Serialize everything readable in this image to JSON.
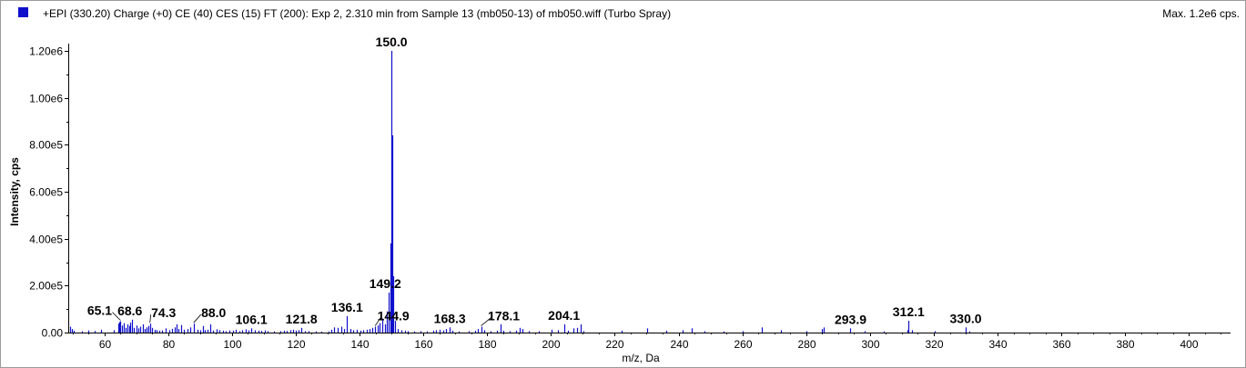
{
  "header": {
    "title": "+EPI (330.20) Charge (+0) CE (40) CES (15) FT (200): Exp 2, 2.310 min from Sample 13 (mb050-13) of mb050.wiff (Turbo Spray)",
    "max_label": "Max. 1.2e6 cps."
  },
  "colors": {
    "series": "#1010cc",
    "axis": "#000000",
    "frame": "#9a9a9a"
  },
  "chart_data": {
    "type": "bar",
    "xlabel": "m/z, Da",
    "ylabel": "Intensity, cps",
    "xlim": [
      49,
      413
    ],
    "ylim": [
      0,
      1200000
    ],
    "x_ticks": [
      60,
      80,
      100,
      120,
      140,
      160,
      180,
      200,
      220,
      240,
      260,
      280,
      300,
      320,
      340,
      360,
      380,
      400
    ],
    "y_ticks": [
      {
        "value": 0,
        "label": "0.00"
      },
      {
        "value": 200000,
        "label": "2.00e5"
      },
      {
        "value": 400000,
        "label": "4.00e5"
      },
      {
        "value": 600000,
        "label": "6.00e5"
      },
      {
        "value": 800000,
        "label": "8.00e5"
      },
      {
        "value": 1000000,
        "label": "1.00e6"
      },
      {
        "value": 1200000,
        "label": "1.20e6"
      }
    ],
    "peaks": [
      {
        "mz": 49.3,
        "y": 25000
      },
      {
        "mz": 49.8,
        "y": 15000
      },
      {
        "mz": 50.5,
        "y": 8000
      },
      {
        "mz": 53.0,
        "y": 6000
      },
      {
        "mz": 55.1,
        "y": 9000
      },
      {
        "mz": 57.0,
        "y": 7000
      },
      {
        "mz": 59.1,
        "y": 12000
      },
      {
        "mz": 63.0,
        "y": 10000
      },
      {
        "mz": 64.3,
        "y": 38000
      },
      {
        "mz": 64.7,
        "y": 45000
      },
      {
        "mz": 65.1,
        "y": 48000
      },
      {
        "mz": 65.6,
        "y": 30000
      },
      {
        "mz": 66.2,
        "y": 40000
      },
      {
        "mz": 66.8,
        "y": 20000
      },
      {
        "mz": 67.2,
        "y": 35000
      },
      {
        "mz": 67.7,
        "y": 28000
      },
      {
        "mz": 68.2,
        "y": 42000
      },
      {
        "mz": 68.6,
        "y": 55000
      },
      {
        "mz": 69.2,
        "y": 20000
      },
      {
        "mz": 70.0,
        "y": 30000
      },
      {
        "mz": 70.6,
        "y": 18000
      },
      {
        "mz": 71.2,
        "y": 25000
      },
      {
        "mz": 72.0,
        "y": 35000
      },
      {
        "mz": 72.6,
        "y": 15000
      },
      {
        "mz": 73.2,
        "y": 22000
      },
      {
        "mz": 73.8,
        "y": 28000
      },
      {
        "mz": 74.3,
        "y": 38000
      },
      {
        "mz": 75.0,
        "y": 20000
      },
      {
        "mz": 75.7,
        "y": 12000
      },
      {
        "mz": 76.5,
        "y": 10000
      },
      {
        "mz": 77.1,
        "y": 8000
      },
      {
        "mz": 78.2,
        "y": 9000
      },
      {
        "mz": 79.3,
        "y": 18000
      },
      {
        "mz": 80.4,
        "y": 10000
      },
      {
        "mz": 81.3,
        "y": 16000
      },
      {
        "mz": 82.2,
        "y": 22000
      },
      {
        "mz": 82.8,
        "y": 35000
      },
      {
        "mz": 83.3,
        "y": 15000
      },
      {
        "mz": 84.0,
        "y": 32000
      },
      {
        "mz": 85.0,
        "y": 12000
      },
      {
        "mz": 86.0,
        "y": 15000
      },
      {
        "mz": 87.0,
        "y": 22000
      },
      {
        "mz": 88.0,
        "y": 38000
      },
      {
        "mz": 89.1,
        "y": 12000
      },
      {
        "mz": 90.2,
        "y": 10000
      },
      {
        "mz": 91.0,
        "y": 28000
      },
      {
        "mz": 91.6,
        "y": 10000
      },
      {
        "mz": 92.3,
        "y": 12000
      },
      {
        "mz": 93.2,
        "y": 35000
      },
      {
        "mz": 94.2,
        "y": 9000
      },
      {
        "mz": 95.2,
        "y": 14000
      },
      {
        "mz": 96.2,
        "y": 10000
      },
      {
        "mz": 97.2,
        "y": 8000
      },
      {
        "mz": 98.2,
        "y": 6000
      },
      {
        "mz": 99.2,
        "y": 9000
      },
      {
        "mz": 100.4,
        "y": 8000
      },
      {
        "mz": 101.2,
        "y": 12000
      },
      {
        "mz": 102.3,
        "y": 6000
      },
      {
        "mz": 103.3,
        "y": 10000
      },
      {
        "mz": 104.2,
        "y": 14000
      },
      {
        "mz": 105.2,
        "y": 9000
      },
      {
        "mz": 106.1,
        "y": 18000
      },
      {
        "mz": 107.2,
        "y": 10000
      },
      {
        "mz": 108.2,
        "y": 8000
      },
      {
        "mz": 109.1,
        "y": 7000
      },
      {
        "mz": 110.2,
        "y": 9000
      },
      {
        "mz": 111.2,
        "y": 6000
      },
      {
        "mz": 113.2,
        "y": 5000
      },
      {
        "mz": 115.2,
        "y": 6000
      },
      {
        "mz": 116.2,
        "y": 8000
      },
      {
        "mz": 117.1,
        "y": 7000
      },
      {
        "mz": 118.2,
        "y": 10000
      },
      {
        "mz": 119.1,
        "y": 12000
      },
      {
        "mz": 120.1,
        "y": 8000
      },
      {
        "mz": 121.0,
        "y": 10000
      },
      {
        "mz": 121.8,
        "y": 20000
      },
      {
        "mz": 122.8,
        "y": 6000
      },
      {
        "mz": 124.1,
        "y": 6000
      },
      {
        "mz": 126.2,
        "y": 5000
      },
      {
        "mz": 128.1,
        "y": 4000
      },
      {
        "mz": 130.2,
        "y": 5000
      },
      {
        "mz": 131.1,
        "y": 12000
      },
      {
        "mz": 132.1,
        "y": 22000
      },
      {
        "mz": 133.1,
        "y": 20000
      },
      {
        "mz": 134.2,
        "y": 25000
      },
      {
        "mz": 135.1,
        "y": 15000
      },
      {
        "mz": 136.1,
        "y": 70000
      },
      {
        "mz": 137.1,
        "y": 15000
      },
      {
        "mz": 138.0,
        "y": 10000
      },
      {
        "mz": 139.1,
        "y": 12000
      },
      {
        "mz": 140.2,
        "y": 8000
      },
      {
        "mz": 141.1,
        "y": 10000
      },
      {
        "mz": 142.2,
        "y": 12000
      },
      {
        "mz": 143.1,
        "y": 15000
      },
      {
        "mz": 144.0,
        "y": 20000
      },
      {
        "mz": 144.9,
        "y": 25000
      },
      {
        "mz": 145.6,
        "y": 30000
      },
      {
        "mz": 146.2,
        "y": 40000
      },
      {
        "mz": 147.1,
        "y": 60000
      },
      {
        "mz": 148.1,
        "y": 35000
      },
      {
        "mz": 148.7,
        "y": 90000
      },
      {
        "mz": 149.2,
        "y": 170000
      },
      {
        "mz": 149.6,
        "y": 380000
      },
      {
        "mz": 150.0,
        "y": 1200000
      },
      {
        "mz": 150.2,
        "y": 840000
      },
      {
        "mz": 150.5,
        "y": 240000
      },
      {
        "mz": 151.0,
        "y": 50000
      },
      {
        "mz": 152.0,
        "y": 15000
      },
      {
        "mz": 153.1,
        "y": 10000
      },
      {
        "mz": 154.2,
        "y": 8000
      },
      {
        "mz": 155.1,
        "y": 6000
      },
      {
        "mz": 157.1,
        "y": 5000
      },
      {
        "mz": 159.2,
        "y": 6000
      },
      {
        "mz": 161.2,
        "y": 5000
      },
      {
        "mz": 163.1,
        "y": 8000
      },
      {
        "mz": 164.1,
        "y": 10000
      },
      {
        "mz": 165.1,
        "y": 12000
      },
      {
        "mz": 166.2,
        "y": 9000
      },
      {
        "mz": 167.2,
        "y": 15000
      },
      {
        "mz": 168.3,
        "y": 22000
      },
      {
        "mz": 169.2,
        "y": 8000
      },
      {
        "mz": 171.1,
        "y": 5000
      },
      {
        "mz": 174.1,
        "y": 6000
      },
      {
        "mz": 176.2,
        "y": 8000
      },
      {
        "mz": 177.2,
        "y": 15000
      },
      {
        "mz": 178.1,
        "y": 25000
      },
      {
        "mz": 179.2,
        "y": 10000
      },
      {
        "mz": 181.1,
        "y": 6000
      },
      {
        "mz": 183.1,
        "y": 8000
      },
      {
        "mz": 184.1,
        "y": 35000
      },
      {
        "mz": 185.2,
        "y": 8000
      },
      {
        "mz": 187.2,
        "y": 6000
      },
      {
        "mz": 189.1,
        "y": 8000
      },
      {
        "mz": 190.1,
        "y": 20000
      },
      {
        "mz": 191.2,
        "y": 15000
      },
      {
        "mz": 193.1,
        "y": 6000
      },
      {
        "mz": 196.2,
        "y": 6000
      },
      {
        "mz": 200.2,
        "y": 12000
      },
      {
        "mz": 202.1,
        "y": 10000
      },
      {
        "mz": 204.1,
        "y": 35000
      },
      {
        "mz": 205.2,
        "y": 8000
      },
      {
        "mz": 207.1,
        "y": 18000
      },
      {
        "mz": 208.2,
        "y": 20000
      },
      {
        "mz": 209.2,
        "y": 35000
      },
      {
        "mz": 210.2,
        "y": 6000
      },
      {
        "mz": 222.1,
        "y": 8000
      },
      {
        "mz": 230.1,
        "y": 18000
      },
      {
        "mz": 236.2,
        "y": 8000
      },
      {
        "mz": 241.2,
        "y": 10000
      },
      {
        "mz": 244.1,
        "y": 18000
      },
      {
        "mz": 248.2,
        "y": 6000
      },
      {
        "mz": 254.2,
        "y": 5000
      },
      {
        "mz": 260.2,
        "y": 6000
      },
      {
        "mz": 266.1,
        "y": 22000
      },
      {
        "mz": 272.2,
        "y": 10000
      },
      {
        "mz": 280.1,
        "y": 6000
      },
      {
        "mz": 284.9,
        "y": 15000
      },
      {
        "mz": 285.4,
        "y": 22000
      },
      {
        "mz": 293.9,
        "y": 18000
      },
      {
        "mz": 298.2,
        "y": 6000
      },
      {
        "mz": 304.2,
        "y": 5000
      },
      {
        "mz": 311.6,
        "y": 10000
      },
      {
        "mz": 312.1,
        "y": 50000
      },
      {
        "mz": 313.1,
        "y": 10000
      },
      {
        "mz": 320.2,
        "y": 6000
      },
      {
        "mz": 330.0,
        "y": 22000
      },
      {
        "mz": 331.1,
        "y": 5000
      }
    ],
    "peak_labels": [
      {
        "text": "65.1",
        "mz": 65.1,
        "y": 48000,
        "x_offset": -23,
        "y_offset": -2
      },
      {
        "text": "68.6",
        "mz": 68.6,
        "y": 55000,
        "x_offset": -2,
        "y_offset": 0
      },
      {
        "text": "74.3",
        "mz": 74.3,
        "y": 38000,
        "x_offset": 15,
        "y_offset": -2
      },
      {
        "text": "88.0",
        "mz": 88.0,
        "y": 38000,
        "x_offset": 22,
        "y_offset": -2
      },
      {
        "text": "106.1",
        "mz": 106.1,
        "y": 18000,
        "x_offset": 0,
        "y_offset": 0
      },
      {
        "text": "121.8",
        "mz": 121.8,
        "y": 20000,
        "x_offset": 0,
        "y_offset": 0
      },
      {
        "text": "136.1",
        "mz": 136.1,
        "y": 70000,
        "x_offset": 0,
        "y_offset": 0
      },
      {
        "text": "144.9",
        "mz": 144.9,
        "y": 25000,
        "x_offset": 20,
        "y_offset": -2
      },
      {
        "text": "149.2",
        "mz": 149.2,
        "y": 170000,
        "x_offset": -4,
        "y_offset": 0
      },
      {
        "text": "150.0",
        "mz": 150.0,
        "y": 1200000,
        "x_offset": 0,
        "y_offset": 0
      },
      {
        "text": "168.3",
        "mz": 168.3,
        "y": 22000,
        "x_offset": 0,
        "y_offset": 0
      },
      {
        "text": "178.1",
        "mz": 178.1,
        "y": 25000,
        "x_offset": 25,
        "y_offset": -2
      },
      {
        "text": "204.1",
        "mz": 204.1,
        "y": 35000,
        "x_offset": 0,
        "y_offset": 0
      },
      {
        "text": "293.9",
        "mz": 293.9,
        "y": 18000,
        "x_offset": 0,
        "y_offset": 0
      },
      {
        "text": "312.1",
        "mz": 312.1,
        "y": 50000,
        "x_offset": 0,
        "y_offset": 0
      },
      {
        "text": "330.0",
        "mz": 330.0,
        "y": 22000,
        "x_offset": 0,
        "y_offset": 0
      }
    ]
  }
}
